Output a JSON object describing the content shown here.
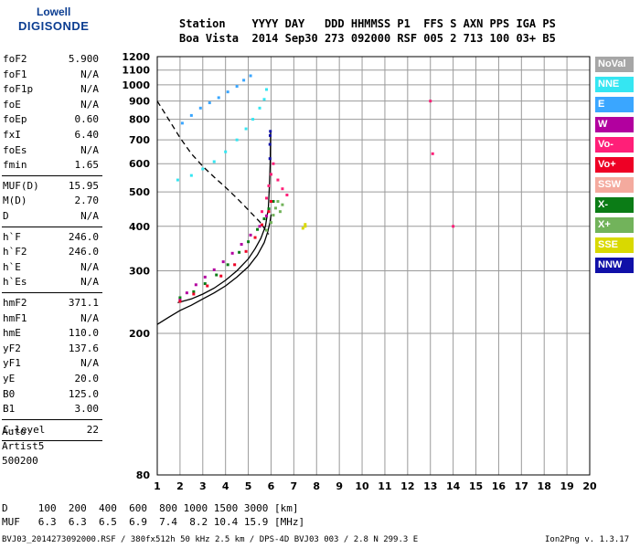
{
  "logo": {
    "line1": "Lowell",
    "line2": "DIGISONDE"
  },
  "header": {
    "row1": "Station    YYYY DAY   DDD HHMMSS P1  FFS S AXN PPS IGA PS",
    "row2": "Boa Vista  2014 Sep30 273 092000 RSF 005 2 713 100 03+ B5"
  },
  "params": [
    {
      "k": "foF2",
      "v": "5.900"
    },
    {
      "k": "foF1",
      "v": "N/A"
    },
    {
      "k": "foF1p",
      "v": "N/A"
    },
    {
      "k": "foE",
      "v": "N/A"
    },
    {
      "k": "foEp",
      "v": "0.60"
    },
    {
      "k": "fxI",
      "v": "6.40"
    },
    {
      "k": "foEs",
      "v": "N/A"
    },
    {
      "k": "fmin",
      "v": "1.65"
    },
    {
      "k": "MUF(D)",
      "v": "15.95"
    },
    {
      "k": "M(D)",
      "v": "2.70"
    },
    {
      "k": "D",
      "v": "N/A"
    },
    {
      "k": "h`F",
      "v": "246.0"
    },
    {
      "k": "h`F2",
      "v": "246.0"
    },
    {
      "k": "h`E",
      "v": "N/A"
    },
    {
      "k": "h`Es",
      "v": "N/A"
    },
    {
      "k": "hmF2",
      "v": "371.1"
    },
    {
      "k": "hmF1",
      "v": "N/A"
    },
    {
      "k": "hmE",
      "v": "110.0"
    },
    {
      "k": "yF2",
      "v": "137.6"
    },
    {
      "k": "yF1",
      "v": "N/A"
    },
    {
      "k": "yE",
      "v": "20.0"
    },
    {
      "k": "B0",
      "v": "125.0"
    },
    {
      "k": "B1",
      "v": "3.00"
    },
    {
      "k": "C-level",
      "v": "22"
    }
  ],
  "autoscale": {
    "line1": "Auto:",
    "line2": "Artist5",
    "line3": "500200"
  },
  "legend": [
    {
      "label": "NoVal",
      "bg": "#a6a6a6",
      "fg": "#ffffff"
    },
    {
      "label": "NNE",
      "bg": "#35e6f2",
      "fg": "#ffffff"
    },
    {
      "label": "E",
      "bg": "#3aa6ff",
      "fg": "#ffffff"
    },
    {
      "label": "W",
      "bg": "#b2009f",
      "fg": "#ffffff"
    },
    {
      "label": "Vo-",
      "bg": "#ff1f78",
      "fg": "#ffffff"
    },
    {
      "label": "Vo+",
      "bg": "#ee0025",
      "fg": "#ffffff"
    },
    {
      "label": "SSW",
      "bg": "#f4aa9e",
      "fg": "#ffffff"
    },
    {
      "label": "X-",
      "bg": "#0b7c16",
      "fg": "#ffffff"
    },
    {
      "label": "X+",
      "bg": "#72b35b",
      "fg": "#ffffff"
    },
    {
      "label": "SSE",
      "bg": "#d9d900",
      "fg": "#ffffff"
    },
    {
      "label": "NNW",
      "bg": "#1010a8",
      "fg": "#ffffff"
    }
  ],
  "muf_table": {
    "row1": "D     100  200  400  600  800 1000 1500 3000 [km]",
    "row2": "MUF   6.3  6.3  6.5  6.9  7.4  8.2 10.4 15.9 [MHz]"
  },
  "footer": {
    "left": "BVJ03_2014273092000.RSF / 380fx512h 50 kHz 2.5 km / DPS-4D BVJ03 003 / 2.8 N 299.3 E",
    "right": "Ion2Png v. 1.3.17"
  },
  "chart_data": {
    "type": "scatter",
    "xlim": [
      1,
      20
    ],
    "ylim": [
      80,
      1200
    ],
    "x_ticks": [
      1,
      2,
      3,
      4,
      5,
      6,
      7,
      8,
      9,
      10,
      11,
      12,
      13,
      14,
      15,
      16,
      17,
      18,
      19,
      20
    ],
    "y_ticks": [
      80,
      200,
      300,
      400,
      500,
      600,
      700,
      800,
      900,
      1000,
      1100,
      1200
    ],
    "y_log": true,
    "grid": true,
    "series": [
      {
        "name": "X-",
        "color": "#0b7c16",
        "x": [
          2.0,
          2.6,
          3.1,
          3.6,
          4.1,
          4.6,
          5.0,
          5.4,
          5.7,
          5.9,
          6.1
        ],
        "y": [
          252,
          262,
          276,
          292,
          312,
          338,
          362,
          392,
          420,
          448,
          470
        ]
      },
      {
        "name": "NNE",
        "color": "#35e6f2",
        "x": [
          1.9,
          2.5,
          3.0,
          3.5,
          4.0,
          4.5,
          4.9,
          5.2,
          5.5,
          5.7,
          5.8
        ],
        "y": [
          540,
          556,
          580,
          608,
          648,
          700,
          752,
          800,
          860,
          910,
          970
        ]
      },
      {
        "name": "E",
        "color": "#3aa6ff",
        "x": [
          2.1,
          2.5,
          2.9,
          3.3,
          3.7,
          4.1,
          4.5,
          4.8,
          5.1
        ],
        "y": [
          780,
          820,
          860,
          890,
          920,
          955,
          990,
          1030,
          1060
        ]
      },
      {
        "name": "W",
        "color": "#b2009f",
        "x": [
          2.0,
          2.3,
          2.7,
          3.1,
          3.5,
          3.9,
          4.3,
          4.7,
          5.1,
          5.5,
          5.8
        ],
        "y": [
          248,
          260,
          274,
          288,
          302,
          318,
          336,
          356,
          378,
          400,
          428
        ]
      },
      {
        "name": "Vo-",
        "color": "#ff1f78",
        "x": [
          5.6,
          5.8,
          5.9,
          6.0,
          6.1,
          6.3,
          6.5,
          6.7,
          13.0,
          13.1,
          14.0
        ],
        "y": [
          440,
          480,
          520,
          560,
          600,
          540,
          510,
          490,
          900,
          640,
          400
        ]
      },
      {
        "name": "Vo+",
        "color": "#ee0025",
        "x": [
          2.0,
          2.6,
          3.2,
          3.8,
          4.4,
          4.9,
          5.3,
          5.6,
          5.9,
          6.0
        ],
        "y": [
          246,
          258,
          272,
          290,
          312,
          340,
          372,
          404,
          440,
          470
        ]
      },
      {
        "name": "X+",
        "color": "#72b35b",
        "x": [
          5.8,
          6.0,
          6.1,
          6.2,
          6.3,
          6.4,
          6.5
        ],
        "y": [
          390,
          410,
          430,
          450,
          470,
          440,
          460
        ]
      },
      {
        "name": "SSE",
        "color": "#d9d900",
        "x": [
          7.4,
          7.5,
          7.5
        ],
        "y": [
          395,
          400,
          405
        ]
      },
      {
        "name": "NNW",
        "color": "#1010a8",
        "x": [
          5.95,
          5.95,
          5.96,
          5.97
        ],
        "y": [
          620,
          680,
          720,
          740
        ]
      }
    ],
    "model_curves": [
      {
        "style": "solid",
        "x": [
          1.0,
          1.5,
          2.0,
          2.5,
          3.0,
          3.5,
          4.0,
          4.5,
          5.0,
          5.4,
          5.7,
          5.85,
          5.95,
          6.0
        ],
        "y": [
          212,
          222,
          232,
          240,
          250,
          260,
          272,
          288,
          308,
          332,
          360,
          385,
          410,
          432
        ]
      },
      {
        "style": "solid",
        "x": [
          1.9,
          2.5,
          3.0,
          3.5,
          4.0,
          4.5,
          5.0,
          5.3,
          5.55,
          5.75,
          5.88,
          5.93,
          5.96,
          5.98
        ],
        "y": [
          244,
          250,
          258,
          268,
          282,
          300,
          324,
          346,
          370,
          400,
          450,
          520,
          600,
          740
        ]
      },
      {
        "style": "dashed",
        "x": [
          1.0,
          1.5,
          2.0,
          2.5,
          3.0,
          3.5,
          4.0,
          4.5,
          5.0,
          5.5,
          5.9
        ],
        "y": [
          900,
          800,
          710,
          640,
          590,
          550,
          515,
          480,
          445,
          412,
          380
        ]
      }
    ]
  }
}
